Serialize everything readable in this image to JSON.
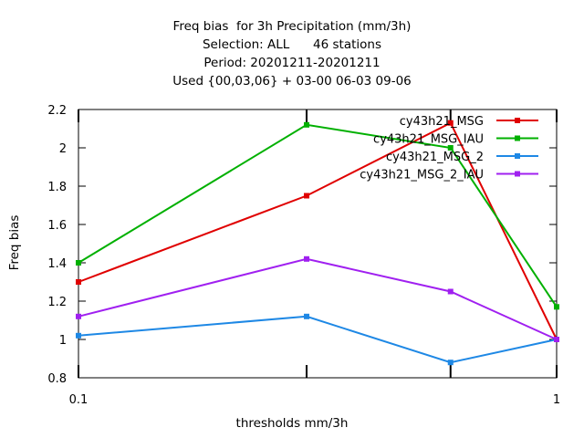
{
  "chart_data": {
    "type": "line",
    "title_lines": [
      "Freq bias  for 3h Precipitation (mm/3h)",
      "Selection: ALL      46 stations",
      "Period: 20201211-20201211",
      "Used {00,03,06} + 03-00 06-03 09-06"
    ],
    "xlabel": "thresholds mm/3h",
    "ylabel": "Freq bias",
    "x_scale": "log",
    "xlim": [
      0.1,
      1
    ],
    "ylim": [
      0.8,
      2.2
    ],
    "x": [
      0.1,
      0.3,
      0.6,
      1
    ],
    "x_tick_labels": [
      {
        "value": 0.1,
        "label": "0.1"
      },
      {
        "value": 1,
        "label": "1"
      }
    ],
    "y_tick_labels": [
      {
        "value": 0.8,
        "label": "0.8"
      },
      {
        "value": 1.0,
        "label": "1"
      },
      {
        "value": 1.2,
        "label": "1.2"
      },
      {
        "value": 1.4,
        "label": "1.4"
      },
      {
        "value": 1.6,
        "label": "1.6"
      },
      {
        "value": 1.8,
        "label": "1.8"
      },
      {
        "value": 2.0,
        "label": "2"
      },
      {
        "value": 2.2,
        "label": "2.2"
      }
    ],
    "grid": false,
    "legend_position": "top-right",
    "series": [
      {
        "name": "cy43h21_MSG",
        "color": "#e00000",
        "values": [
          1.3,
          1.75,
          2.13,
          1.0
        ]
      },
      {
        "name": "cy43h21_MSG_IAU",
        "color": "#00b000",
        "values": [
          1.4,
          2.12,
          2.0,
          1.17
        ]
      },
      {
        "name": "cy43h21_MSG_2",
        "color": "#1e88e5",
        "values": [
          1.02,
          1.12,
          0.88,
          1.0
        ]
      },
      {
        "name": "cy43h21_MSG_2_IAU",
        "color": "#a020f0",
        "values": [
          1.12,
          1.42,
          1.25,
          1.0
        ]
      }
    ]
  }
}
